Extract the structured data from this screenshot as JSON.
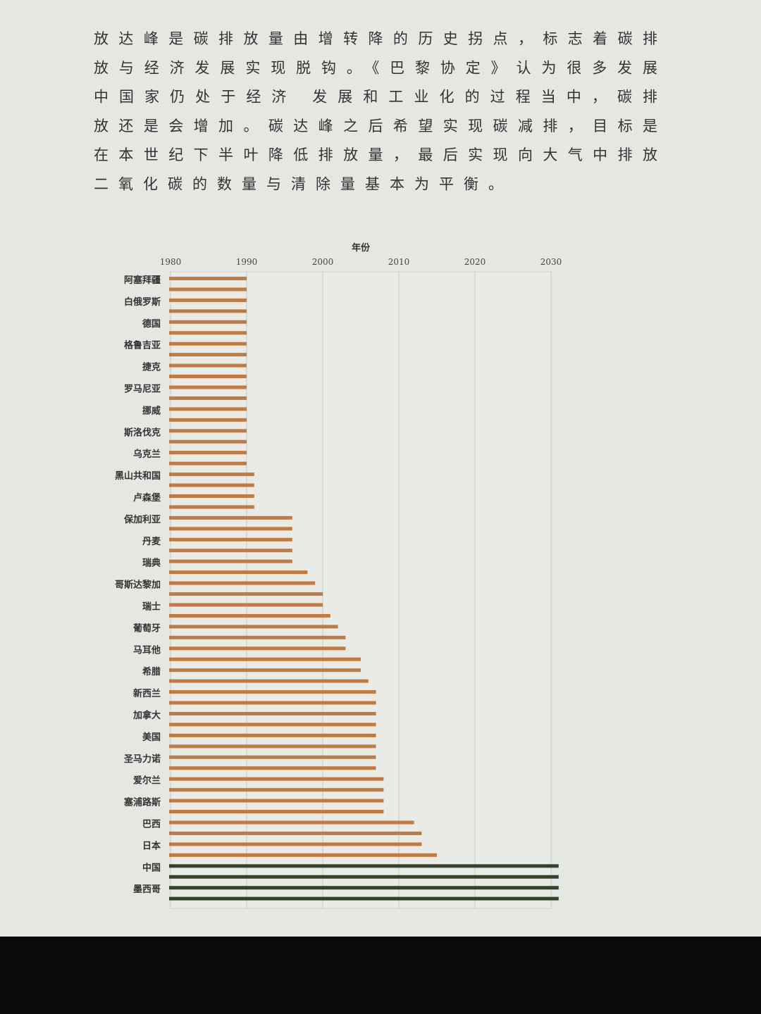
{
  "paragraph": [
    "放达峰是碳排放量由增转降的历史拐点，标志着碳排",
    "放与经济发展实现脱钩。《巴黎协定》认为很多发展",
    "中国家仍处于经济 发展和工业化的过程当中，碳排",
    "放还是会增加。碳达峰之后希望实现碳减排，目标是",
    "在本世纪下半叶降低排放量，最后实现向大气中排放",
    "二氧化碳的数量与清除量基本为平衡。"
  ],
  "chart_data": {
    "type": "bar",
    "orientation": "horizontal",
    "x_label": "年份",
    "categories": [
      "阿塞拜疆",
      null,
      "白俄罗斯",
      null,
      "德国",
      null,
      "格鲁吉亚",
      null,
      "捷克",
      null,
      "罗马尼亚",
      null,
      "挪威",
      null,
      "斯洛伐克",
      null,
      "乌克兰",
      null,
      "黑山共和国",
      null,
      "卢森堡",
      null,
      "保加利亚",
      null,
      "丹麦",
      null,
      "瑞典",
      null,
      "哥斯达黎加",
      null,
      "瑞士",
      null,
      "葡萄牙",
      null,
      "马耳他",
      null,
      "希腊",
      null,
      "新西兰",
      null,
      "加拿大",
      null,
      "美国",
      null,
      "圣马力诺",
      null,
      "爱尔兰",
      null,
      "塞浦路斯",
      null,
      "巴西",
      null,
      "日本",
      null,
      "中国",
      null,
      "墨西哥",
      null
    ],
    "values": [
      1990,
      1990,
      1990,
      1990,
      1990,
      1990,
      1990,
      1990,
      1990,
      1990,
      1990,
      1990,
      1990,
      1990,
      1990,
      1990,
      1990,
      1990,
      1991,
      1991,
      1991,
      1991,
      1996,
      1996,
      1996,
      1996,
      1996,
      1998,
      1999,
      2000,
      2000,
      2001,
      2002,
      2003,
      2003,
      2005,
      2005,
      2006,
      2007,
      2007,
      2007,
      2007,
      2007,
      2007,
      2007,
      2007,
      2008,
      2008,
      2008,
      2008,
      2012,
      2013,
      2013,
      2015,
      2031,
      2031,
      2031,
      2031
    ],
    "colors": [
      "#c27a40",
      "#c27a40",
      "#c27a40",
      "#c27a40",
      "#c27a40",
      "#c27a40",
      "#c27a40",
      "#c27a40",
      "#c27a40",
      "#c27a40",
      "#c27a40",
      "#c27a40",
      "#c27a40",
      "#c27a40",
      "#c27a40",
      "#c27a40",
      "#c27a40",
      "#c27a40",
      "#c27a40",
      "#c27a40",
      "#c27a40",
      "#c27a40",
      "#c27a40",
      "#c27a40",
      "#c27a40",
      "#c27a40",
      "#c27a40",
      "#c27a40",
      "#c27a40",
      "#c27a40",
      "#c27a40",
      "#c27a40",
      "#c27a40",
      "#c27a40",
      "#c27a40",
      "#c27a40",
      "#c27a40",
      "#c27a40",
      "#c27a40",
      "#c27a40",
      "#c27a40",
      "#c27a40",
      "#c27a40",
      "#c27a40",
      "#c27a40",
      "#c27a40",
      "#c27a40",
      "#c27a40",
      "#c27a40",
      "#c27a40",
      "#c27a40",
      "#c27a40",
      "#c27a40",
      "#c27a40",
      "#34422b",
      "#34422b",
      "#34422b",
      "#34422b"
    ],
    "xlim": [
      1980,
      2030
    ],
    "xticks": [
      1980,
      1990,
      2000,
      2010,
      2020,
      2030
    ],
    "grid": true
  }
}
